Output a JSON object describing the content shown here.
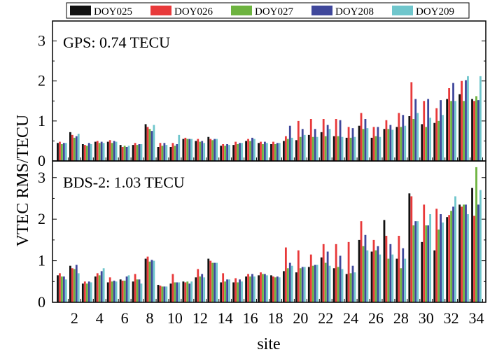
{
  "chart_data": {
    "type": "bar",
    "xlabel": "site",
    "ylabel": "VTEC RMS/TECU",
    "xticks": [
      "2",
      "4",
      "6",
      "8",
      "10",
      "12",
      "14",
      "16",
      "18",
      "20",
      "22",
      "24",
      "26",
      "28",
      "30",
      "32",
      "34"
    ],
    "sites": [
      1,
      2,
      3,
      4,
      5,
      6,
      7,
      8,
      9,
      10,
      11,
      12,
      13,
      14,
      15,
      16,
      17,
      18,
      19,
      20,
      21,
      22,
      23,
      24,
      25,
      26,
      27,
      28,
      29,
      30,
      31,
      32,
      33,
      34
    ],
    "legend": {
      "placement": "top",
      "entries": [
        {
          "name": "DOY025",
          "color": "#111111"
        },
        {
          "name": "DOY026",
          "color": "#e8393a"
        },
        {
          "name": "DOY027",
          "color": "#6db33f"
        },
        {
          "name": "DOY208",
          "color": "#3f479b"
        },
        {
          "name": "DOY209",
          "color": "#6fc6cc"
        }
      ]
    },
    "panels": [
      {
        "label": "GPS: 0.74 TECU",
        "ylim": [
          0,
          3.5
        ],
        "yticks": [
          "0",
          "1",
          "2",
          "3"
        ],
        "series": [
          {
            "name": "DOY025",
            "values": [
              0.45,
              0.72,
              0.42,
              0.48,
              0.48,
              0.4,
              0.4,
              0.92,
              0.35,
              0.35,
              0.55,
              0.5,
              0.6,
              0.38,
              0.4,
              0.5,
              0.45,
              0.42,
              0.5,
              0.52,
              0.65,
              0.72,
              0.62,
              0.58,
              0.88,
              0.58,
              0.8,
              0.85,
              1.12,
              0.92,
              0.95,
              1.55,
              1.67,
              1.55
            ]
          },
          {
            "name": "DOY026",
            "values": [
              0.48,
              0.65,
              0.4,
              0.5,
              0.52,
              0.35,
              0.45,
              0.85,
              0.45,
              0.45,
              0.58,
              0.55,
              0.55,
              0.42,
              0.48,
              0.55,
              0.48,
              0.48,
              0.62,
              1.0,
              1.05,
              1.05,
              1.05,
              0.85,
              1.2,
              0.85,
              1.02,
              1.2,
              1.97,
              1.5,
              1.32,
              1.82,
              2.0,
              1.5
            ]
          },
          {
            "name": "DOY027",
            "values": [
              0.42,
              0.58,
              0.38,
              0.45,
              0.45,
              0.38,
              0.4,
              0.8,
              0.38,
              0.38,
              0.55,
              0.48,
              0.52,
              0.38,
              0.42,
              0.5,
              0.42,
              0.42,
              0.55,
              0.6,
              0.6,
              0.62,
              0.62,
              0.58,
              0.8,
              0.62,
              0.8,
              0.85,
              1.05,
              0.85,
              1.0,
              1.5,
              1.5,
              1.62
            ]
          },
          {
            "name": "DOY208",
            "values": [
              0.45,
              0.62,
              0.45,
              0.48,
              0.5,
              0.35,
              0.42,
              0.75,
              0.45,
              0.42,
              0.55,
              0.5,
              0.55,
              0.42,
              0.45,
              0.58,
              0.48,
              0.45,
              0.88,
              0.8,
              0.8,
              0.9,
              1.02,
              0.82,
              1.05,
              0.85,
              0.9,
              1.15,
              1.55,
              1.55,
              1.52,
              1.95,
              2.02,
              1.52
            ]
          },
          {
            "name": "DOY209",
            "values": [
              0.45,
              0.68,
              0.42,
              0.45,
              0.48,
              0.38,
              0.42,
              0.9,
              0.4,
              0.65,
              0.55,
              0.45,
              0.55,
              0.4,
              0.45,
              0.55,
              0.45,
              0.45,
              0.58,
              0.65,
              0.6,
              0.8,
              0.6,
              0.6,
              0.82,
              0.6,
              0.78,
              0.88,
              1.2,
              1.08,
              1.15,
              1.5,
              2.12,
              2.12
            ]
          }
        ]
      },
      {
        "label": "BDS-2: 1.03 TECU",
        "ylim": [
          0,
          3.4
        ],
        "yticks": [
          "0",
          "1",
          "2",
          "3"
        ],
        "series": [
          {
            "name": "DOY025",
            "values": [
              0.65,
              0.88,
              0.45,
              0.62,
              0.48,
              0.55,
              0.5,
              1.05,
              0.42,
              0.45,
              0.5,
              0.6,
              1.05,
              0.48,
              0.48,
              0.62,
              0.65,
              0.65,
              0.75,
              0.72,
              0.85,
              1.08,
              0.82,
              0.68,
              1.5,
              1.22,
              1.98,
              1.05,
              2.62,
              1.45,
              1.25,
              2.05,
              2.35,
              2.75
            ]
          },
          {
            "name": "DOY026",
            "values": [
              0.7,
              0.82,
              0.5,
              0.7,
              0.6,
              0.52,
              0.68,
              1.1,
              0.4,
              0.68,
              0.48,
              0.8,
              1.0,
              0.7,
              0.58,
              0.68,
              0.72,
              0.62,
              1.32,
              1.25,
              1.15,
              1.4,
              1.4,
              1.45,
              1.95,
              1.5,
              1.6,
              1.6,
              2.55,
              2.35,
              2.25,
              2.1,
              2.3,
              2.08
            ]
          },
          {
            "name": "DOY027",
            "values": [
              0.62,
              0.8,
              0.45,
              0.65,
              0.5,
              0.52,
              0.55,
              0.98,
              0.38,
              0.48,
              0.5,
              0.62,
              0.95,
              0.5,
              0.48,
              0.62,
              0.68,
              0.6,
              0.82,
              0.82,
              0.88,
              0.95,
              0.85,
              0.7,
              1.35,
              1.25,
              1.05,
              0.82,
              1.85,
              1.85,
              1.75,
              2.2,
              2.35,
              3.25
            ]
          },
          {
            "name": "DOY208",
            "values": [
              0.62,
              0.9,
              0.5,
              0.75,
              0.52,
              0.62,
              0.55,
              1.02,
              0.38,
              0.48,
              0.45,
              0.68,
              0.95,
              0.55,
              0.55,
              0.68,
              0.68,
              0.62,
              0.95,
              0.85,
              0.9,
              1.22,
              1.12,
              0.88,
              1.62,
              1.35,
              1.4,
              1.3,
              1.95,
              1.85,
              2.12,
              2.3,
              2.35,
              2.35
            ]
          },
          {
            "name": "DOY209",
            "values": [
              0.55,
              0.7,
              0.48,
              0.82,
              0.5,
              0.65,
              0.45,
              1.0,
              0.38,
              0.48,
              0.5,
              0.6,
              0.95,
              0.55,
              0.5,
              0.62,
              0.65,
              0.6,
              0.88,
              0.85,
              0.9,
              0.88,
              0.8,
              0.72,
              1.25,
              1.15,
              1.15,
              1.05,
              1.95,
              2.12,
              1.92,
              2.55,
              2.12,
              2.7
            ]
          }
        ]
      }
    ]
  }
}
